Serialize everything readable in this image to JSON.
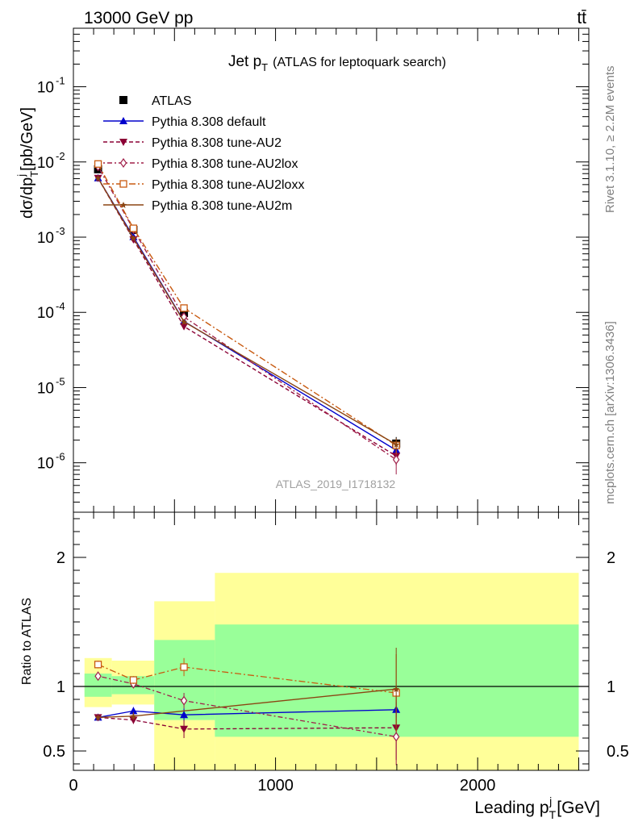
{
  "header": {
    "energy_label": "13000 GeV pp",
    "process_label": "tt̄"
  },
  "side_labels": {
    "rivet": "Rivet 3.1.10, ≥ 2.2M events",
    "mcplots": "mcplots.cern.ch [arXiv:1306.3436]"
  },
  "watermark": "ATLAS_2019_I1718132",
  "chart_data": [
    {
      "type": "line",
      "title": "Jet p",
      "title_sub": "T",
      "title_suffix": "(ATLAS for leptoquark search)",
      "ylabel": "dσ/dp",
      "ylabel_sub": "T",
      "ylabel_sup": "j",
      "ylabel_unit": "[pb/GeV]",
      "yscale": "log",
      "ylim": [
        2.2e-07,
        0.6
      ],
      "xlim": [
        0,
        2550
      ],
      "y_tick_labels": [
        "10",
        "10",
        "10",
        "10",
        "10",
        "10"
      ],
      "y_tick_exponents": [
        "-1",
        "-2",
        "-3",
        "-4",
        "-5",
        "-6"
      ],
      "y_tick_values": [
        0.1,
        0.01,
        0.001,
        0.0001,
        1e-05,
        1e-06
      ],
      "legend_position": "top-left",
      "x": [
        122,
        297,
        547,
        1597
      ],
      "series": [
        {
          "name": "ATLAS",
          "style": "data",
          "color": "#000000",
          "marker": "square-filled",
          "values": [
            0.008,
            0.00125,
            9.8e-05,
            1.8e-06
          ],
          "err": [
            0.0004,
            6e-05,
            6e-06,
            4e-07
          ]
        },
        {
          "name": "Pythia 8.308 default",
          "style": "solid",
          "color": "#0000cc",
          "marker": "triangle-up",
          "values": [
            0.0061,
            0.00101,
            7.6e-05,
            1.47e-06
          ],
          "err": [
            0.0002,
            4e-05,
            4e-06,
            2e-07
          ]
        },
        {
          "name": "Pythia 8.308 tune-AU2",
          "style": "dashed",
          "color": "#8b0035",
          "marker": "triangle-down",
          "values": [
            0.0061,
            0.00093,
            6.5e-05,
            1.23e-06
          ],
          "err": [
            0.0002,
            4e-05,
            4e-06,
            3e-07
          ]
        },
        {
          "name": "Pythia 8.308 tune-AU2lox",
          "style": "dotted-dash",
          "color": "#a0204a",
          "marker": "diamond-open",
          "values": [
            0.0087,
            0.00127,
            8.7e-05,
            1.1e-06
          ],
          "err": [
            0.0003,
            5e-05,
            5e-06,
            4e-07
          ]
        },
        {
          "name": "Pythia 8.308 tune-AU2loxx",
          "style": "dash-dot",
          "color": "#c85a10",
          "marker": "square-open",
          "values": [
            0.0094,
            0.00131,
            0.000114,
            1.7e-06
          ],
          "err": [
            0.0003,
            5e-05,
            6e-06,
            4e-07
          ]
        },
        {
          "name": "Pythia 8.308 tune-AU2m",
          "style": "solid",
          "color": "#8b4513",
          "marker": "star",
          "values": [
            0.0061,
            0.00097,
            7.5e-05,
            1.75e-06
          ],
          "err": [
            0.0002,
            4e-05,
            4e-06,
            3e-07
          ]
        }
      ]
    },
    {
      "type": "line",
      "ylabel": "Ratio to ATLAS",
      "xlabel": "Leading p",
      "xlabel_sub": "T",
      "xlabel_sup": "j",
      "xlabel_unit": "[GeV]",
      "ylim": [
        0.35,
        2.35
      ],
      "xlim": [
        0,
        2550
      ],
      "x_tick_labels": [
        "0",
        "1000",
        "2000"
      ],
      "x_tick_values": [
        0,
        1000,
        2000
      ],
      "y_tick_labels": [
        "0.5",
        "1",
        "2"
      ],
      "y_tick_values": [
        0.5,
        1,
        2
      ],
      "bands": [
        {
          "xmin": 55,
          "xmax": 190,
          "yellow": [
            0.84,
            1.22
          ],
          "green": [
            0.92,
            1.1
          ]
        },
        {
          "xmin": 190,
          "xmax": 400,
          "yellow": [
            0.86,
            1.2
          ],
          "green": [
            0.94,
            1.08
          ]
        },
        {
          "xmin": 400,
          "xmax": 700,
          "yellow": [
            0.35,
            1.66
          ],
          "green": [
            0.74,
            1.36
          ]
        },
        {
          "xmin": 700,
          "xmax": 2500,
          "yellow": [
            0.35,
            1.88
          ],
          "green": [
            0.61,
            1.48
          ]
        }
      ],
      "x": [
        122,
        297,
        547,
        1597
      ],
      "series": [
        {
          "name": "Pythia 8.308 default",
          "style": "solid",
          "color": "#0000cc",
          "marker": "triangle-up",
          "values": [
            0.76,
            0.81,
            0.78,
            0.82
          ],
          "err": [
            0.02,
            0.03,
            0.05,
            0.06
          ]
        },
        {
          "name": "Pythia 8.308 tune-AU2",
          "style": "dashed",
          "color": "#8b0035",
          "marker": "triangle-down",
          "values": [
            0.76,
            0.74,
            0.67,
            0.68
          ],
          "err": [
            0.02,
            0.03,
            0.07,
            0.25
          ]
        },
        {
          "name": "Pythia 8.308 tune-AU2lox",
          "style": "dotted-dash",
          "color": "#a0204a",
          "marker": "diamond-open",
          "values": [
            1.08,
            1.02,
            0.89,
            0.61
          ],
          "err": [
            0.03,
            0.03,
            0.06,
            0.22
          ]
        },
        {
          "name": "Pythia 8.308 tune-AU2loxx",
          "style": "dash-dot",
          "color": "#c85a10",
          "marker": "square-open",
          "values": [
            1.17,
            1.05,
            1.15,
            0.95
          ],
          "err": [
            0.03,
            0.03,
            0.07,
            0.3
          ]
        },
        {
          "name": "Pythia 8.308 tune-AU2m",
          "style": "solid",
          "color": "#8b4513",
          "marker": "star",
          "values": [
            0.76,
            0.77,
            null,
            0.98
          ],
          "err": [
            0.02,
            0.03,
            0,
            0.32
          ]
        }
      ],
      "reference_line": 1
    }
  ]
}
